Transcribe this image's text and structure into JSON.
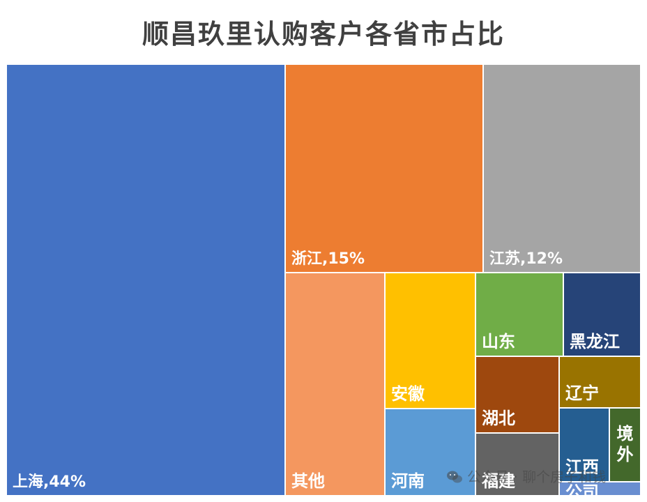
{
  "chart_data": {
    "type": "treemap",
    "title": "顺昌玖里认购客户各省市占比",
    "items": [
      {
        "name": "上海",
        "label": "上海,44%",
        "value": 44,
        "color": "#4472C4"
      },
      {
        "name": "浙江",
        "label": "浙江,15%",
        "value": 15,
        "color": "#ED7D31"
      },
      {
        "name": "江苏",
        "label": "江苏,12%",
        "value": 12,
        "color": "#A5A5A5"
      },
      {
        "name": "其他",
        "label": "其他",
        "color": "#F4975F"
      },
      {
        "name": "安徽",
        "label": "安徽",
        "color": "#FFC000"
      },
      {
        "name": "河南",
        "label": "河南",
        "color": "#5B9BD5"
      },
      {
        "name": "山东",
        "label": "山东",
        "color": "#70AD47"
      },
      {
        "name": "黑龙江",
        "label": "黑龙江",
        "color": "#264478"
      },
      {
        "name": "湖北",
        "label": "湖北",
        "color": "#9E480E"
      },
      {
        "name": "辽宁",
        "label": "辽宁",
        "color": "#997300"
      },
      {
        "name": "福建",
        "label": "福建",
        "color": "#636363"
      },
      {
        "name": "江西",
        "label": "江西",
        "color": "#255E91"
      },
      {
        "name": "境外",
        "label": "境外",
        "color": "#43682B"
      },
      {
        "name": "公司",
        "label": "公司",
        "color": "#698ED0"
      }
    ]
  },
  "watermark": {
    "icon": "wechat-icon",
    "text": "公众号 · 聊个房子和钱"
  }
}
